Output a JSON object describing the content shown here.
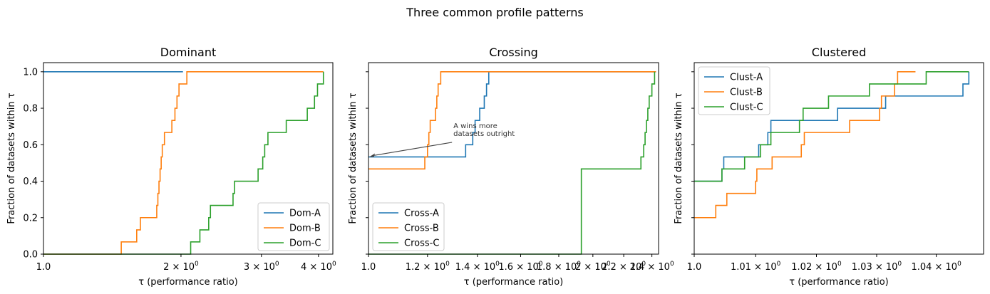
{
  "figure": {
    "title": "Three common profile patterns"
  },
  "colors": {
    "blue": "#1f77b4",
    "orange": "#ff7f0e",
    "green": "#2ca02c",
    "axis": "#000000",
    "annotation": "#444444"
  },
  "chart_data": [
    {
      "type": "line",
      "step": "post",
      "title": "Dominant",
      "xlabel": "τ (performance ratio)",
      "ylabel": "Fraction of datasets within τ",
      "xscale": "log",
      "xlim": [
        1.0,
        4.3
      ],
      "ylim": [
        0.0,
        1.05
      ],
      "xticks": [
        {
          "value": 1.0,
          "label": "1.0"
        },
        {
          "value": 2.0,
          "label": "2 × 10⁰"
        },
        {
          "value": 3.0,
          "label": "3 × 10⁰"
        },
        {
          "value": 4.0,
          "label": "4 × 10⁰"
        }
      ],
      "yticks": [
        {
          "value": 0.0,
          "label": "0.0"
        },
        {
          "value": 0.2,
          "label": "0.2"
        },
        {
          "value": 0.4,
          "label": "0.4"
        },
        {
          "value": 0.6,
          "label": "0.6"
        },
        {
          "value": 0.8,
          "label": "0.8"
        },
        {
          "value": 1.0,
          "label": "1.0"
        }
      ],
      "legend": "lower-right",
      "series": [
        {
          "name": "Dom-A",
          "color": "#1f77b4",
          "points": [
            [
              1.0,
              1.0
            ],
            [
              2.02,
              1.0
            ]
          ]
        },
        {
          "name": "Dom-B",
          "color": "#ff7f0e",
          "points": [
            [
              1.0,
              0.0
            ],
            [
              1.48,
              0.0
            ],
            [
              1.48,
              0.067
            ],
            [
              1.6,
              0.067
            ],
            [
              1.6,
              0.133
            ],
            [
              1.63,
              0.133
            ],
            [
              1.63,
              0.2
            ],
            [
              1.77,
              0.2
            ],
            [
              1.77,
              0.267
            ],
            [
              1.78,
              0.267
            ],
            [
              1.78,
              0.333
            ],
            [
              1.79,
              0.333
            ],
            [
              1.79,
              0.4
            ],
            [
              1.8,
              0.4
            ],
            [
              1.8,
              0.467
            ],
            [
              1.81,
              0.467
            ],
            [
              1.81,
              0.533
            ],
            [
              1.82,
              0.533
            ],
            [
              1.82,
              0.6
            ],
            [
              1.84,
              0.6
            ],
            [
              1.84,
              0.667
            ],
            [
              1.91,
              0.667
            ],
            [
              1.91,
              0.733
            ],
            [
              1.94,
              0.733
            ],
            [
              1.94,
              0.8
            ],
            [
              1.96,
              0.8
            ],
            [
              1.96,
              0.867
            ],
            [
              1.98,
              0.867
            ],
            [
              1.98,
              0.933
            ],
            [
              2.06,
              0.933
            ],
            [
              2.06,
              1.0
            ],
            [
              4.1,
              1.0
            ]
          ]
        },
        {
          "name": "Dom-C",
          "color": "#2ca02c",
          "points": [
            [
              1.0,
              0.0
            ],
            [
              2.1,
              0.0
            ],
            [
              2.1,
              0.067
            ],
            [
              2.2,
              0.067
            ],
            [
              2.2,
              0.133
            ],
            [
              2.3,
              0.133
            ],
            [
              2.3,
              0.2
            ],
            [
              2.32,
              0.2
            ],
            [
              2.32,
              0.267
            ],
            [
              2.6,
              0.267
            ],
            [
              2.6,
              0.333
            ],
            [
              2.62,
              0.333
            ],
            [
              2.62,
              0.4
            ],
            [
              2.95,
              0.4
            ],
            [
              2.95,
              0.467
            ],
            [
              3.02,
              0.467
            ],
            [
              3.02,
              0.533
            ],
            [
              3.05,
              0.533
            ],
            [
              3.05,
              0.6
            ],
            [
              3.1,
              0.6
            ],
            [
              3.1,
              0.667
            ],
            [
              3.4,
              0.667
            ],
            [
              3.4,
              0.733
            ],
            [
              3.78,
              0.733
            ],
            [
              3.78,
              0.8
            ],
            [
              3.92,
              0.8
            ],
            [
              3.92,
              0.867
            ],
            [
              3.98,
              0.867
            ],
            [
              3.98,
              0.933
            ],
            [
              4.1,
              0.933
            ],
            [
              4.1,
              1.0
            ]
          ]
        }
      ]
    },
    {
      "type": "line",
      "step": "post",
      "title": "Crossing",
      "xlabel": "τ (performance ratio)",
      "ylabel": "Fraction of datasets within τ",
      "xscale": "log",
      "xlim": [
        1.0,
        2.45
      ],
      "ylim": [
        0.0,
        1.05
      ],
      "xticks": [
        {
          "value": 1.0,
          "label": "1.0"
        },
        {
          "value": 1.2,
          "label": "1.2 × 10⁰"
        },
        {
          "value": 1.4,
          "label": "1.4 × 10⁰"
        },
        {
          "value": 1.6,
          "label": "1.6 × 10⁰"
        },
        {
          "value": 1.8,
          "label": "1.8 × 10⁰"
        },
        {
          "value": 2.0,
          "label": "2 × 10⁰"
        },
        {
          "value": 2.2,
          "label": "2.2 × 10⁰"
        },
        {
          "value": 2.4,
          "label": "2.4 × 10⁰"
        }
      ],
      "legend": "lower-left",
      "annotation": {
        "text": [
          "A wins more",
          "datasets outright"
        ],
        "xy": [
          1.0,
          0.533
        ],
        "text_at": [
          1.3,
          0.66
        ]
      },
      "series": [
        {
          "name": "Cross-A",
          "color": "#1f77b4",
          "points": [
            [
              1.0,
              0.533
            ],
            [
              1.35,
              0.533
            ],
            [
              1.35,
              0.6
            ],
            [
              1.38,
              0.6
            ],
            [
              1.38,
              0.667
            ],
            [
              1.39,
              0.667
            ],
            [
              1.39,
              0.733
            ],
            [
              1.41,
              0.733
            ],
            [
              1.41,
              0.8
            ],
            [
              1.43,
              0.8
            ],
            [
              1.43,
              0.867
            ],
            [
              1.44,
              0.867
            ],
            [
              1.44,
              0.933
            ],
            [
              1.45,
              0.933
            ],
            [
              1.45,
              1.0
            ],
            [
              2.43,
              1.0
            ]
          ]
        },
        {
          "name": "Cross-B",
          "color": "#ff7f0e",
          "points": [
            [
              1.0,
              0.467
            ],
            [
              1.19,
              0.467
            ],
            [
              1.19,
              0.533
            ],
            [
              1.2,
              0.533
            ],
            [
              1.2,
              0.6
            ],
            [
              1.205,
              0.6
            ],
            [
              1.205,
              0.667
            ],
            [
              1.21,
              0.667
            ],
            [
              1.21,
              0.733
            ],
            [
              1.23,
              0.733
            ],
            [
              1.23,
              0.8
            ],
            [
              1.235,
              0.8
            ],
            [
              1.235,
              0.867
            ],
            [
              1.24,
              0.867
            ],
            [
              1.24,
              0.933
            ],
            [
              1.25,
              0.933
            ],
            [
              1.25,
              1.0
            ],
            [
              2.43,
              1.0
            ]
          ]
        },
        {
          "name": "Cross-C",
          "color": "#2ca02c",
          "points": [
            [
              1.0,
              0.0
            ],
            [
              1.93,
              0.0
            ],
            [
              1.93,
              0.467
            ],
            [
              2.32,
              0.467
            ],
            [
              2.32,
              0.533
            ],
            [
              2.34,
              0.533
            ],
            [
              2.34,
              0.6
            ],
            [
              2.35,
              0.6
            ],
            [
              2.35,
              0.667
            ],
            [
              2.36,
              0.667
            ],
            [
              2.36,
              0.733
            ],
            [
              2.37,
              0.733
            ],
            [
              2.37,
              0.8
            ],
            [
              2.38,
              0.8
            ],
            [
              2.38,
              0.867
            ],
            [
              2.4,
              0.867
            ],
            [
              2.4,
              0.933
            ],
            [
              2.42,
              0.933
            ],
            [
              2.42,
              1.0
            ]
          ]
        }
      ]
    },
    {
      "type": "line",
      "step": "post",
      "title": "Clustered",
      "xlabel": "τ (performance ratio)",
      "ylabel": "Fraction of datasets within τ",
      "xscale": "log",
      "xlim": [
        1.0,
        1.048
      ],
      "ylim": [
        0.0,
        1.05
      ],
      "xticks": [
        {
          "value": 1.0,
          "label": "1.0"
        },
        {
          "value": 1.01,
          "label": "1.01 × 10⁰"
        },
        {
          "value": 1.02,
          "label": "1.02 × 10⁰"
        },
        {
          "value": 1.03,
          "label": "1.03 × 10⁰"
        },
        {
          "value": 1.04,
          "label": "1.04 × 10⁰"
        }
      ],
      "legend": "upper-left",
      "series": [
        {
          "name": "Clust-A",
          "color": "#1f77b4",
          "points": [
            [
              1.0,
              0.4
            ],
            [
              1.0045,
              0.4
            ],
            [
              1.0045,
              0.467
            ],
            [
              1.0048,
              0.467
            ],
            [
              1.0048,
              0.533
            ],
            [
              1.0105,
              0.533
            ],
            [
              1.0105,
              0.6
            ],
            [
              1.012,
              0.6
            ],
            [
              1.012,
              0.667
            ],
            [
              1.0125,
              0.667
            ],
            [
              1.0125,
              0.733
            ],
            [
              1.0235,
              0.733
            ],
            [
              1.0235,
              0.8
            ],
            [
              1.0315,
              0.8
            ],
            [
              1.0315,
              0.867
            ],
            [
              1.0445,
              0.867
            ],
            [
              1.0445,
              0.933
            ],
            [
              1.0455,
              0.933
            ],
            [
              1.0455,
              1.0
            ]
          ]
        },
        {
          "name": "Clust-B",
          "color": "#ff7f0e",
          "points": [
            [
              1.0,
              0.2
            ],
            [
              1.0035,
              0.2
            ],
            [
              1.0035,
              0.267
            ],
            [
              1.0053,
              0.267
            ],
            [
              1.0053,
              0.333
            ],
            [
              1.01,
              0.333
            ],
            [
              1.01,
              0.4
            ],
            [
              1.0102,
              0.4
            ],
            [
              1.0102,
              0.467
            ],
            [
              1.0127,
              0.467
            ],
            [
              1.0127,
              0.533
            ],
            [
              1.0175,
              0.533
            ],
            [
              1.0175,
              0.6
            ],
            [
              1.018,
              0.6
            ],
            [
              1.018,
              0.667
            ],
            [
              1.0255,
              0.667
            ],
            [
              1.0255,
              0.733
            ],
            [
              1.0305,
              0.733
            ],
            [
              1.0305,
              0.8
            ],
            [
              1.0308,
              0.8
            ],
            [
              1.0308,
              0.867
            ],
            [
              1.033,
              0.867
            ],
            [
              1.033,
              0.933
            ],
            [
              1.0335,
              0.933
            ],
            [
              1.0335,
              1.0
            ],
            [
              1.0365,
              1.0
            ]
          ]
        },
        {
          "name": "Clust-C",
          "color": "#2ca02c",
          "points": [
            [
              1.0,
              0.4
            ],
            [
              1.0045,
              0.4
            ],
            [
              1.0045,
              0.467
            ],
            [
              1.0082,
              0.467
            ],
            [
              1.0082,
              0.533
            ],
            [
              1.0108,
              0.533
            ],
            [
              1.0108,
              0.6
            ],
            [
              1.0125,
              0.6
            ],
            [
              1.0125,
              0.667
            ],
            [
              1.0172,
              0.667
            ],
            [
              1.0172,
              0.733
            ],
            [
              1.0178,
              0.733
            ],
            [
              1.0178,
              0.8
            ],
            [
              1.022,
              0.8
            ],
            [
              1.022,
              0.867
            ],
            [
              1.0288,
              0.867
            ],
            [
              1.0288,
              0.933
            ],
            [
              1.0383,
              0.933
            ],
            [
              1.0383,
              1.0
            ],
            [
              1.0455,
              1.0
            ]
          ]
        }
      ]
    }
  ]
}
